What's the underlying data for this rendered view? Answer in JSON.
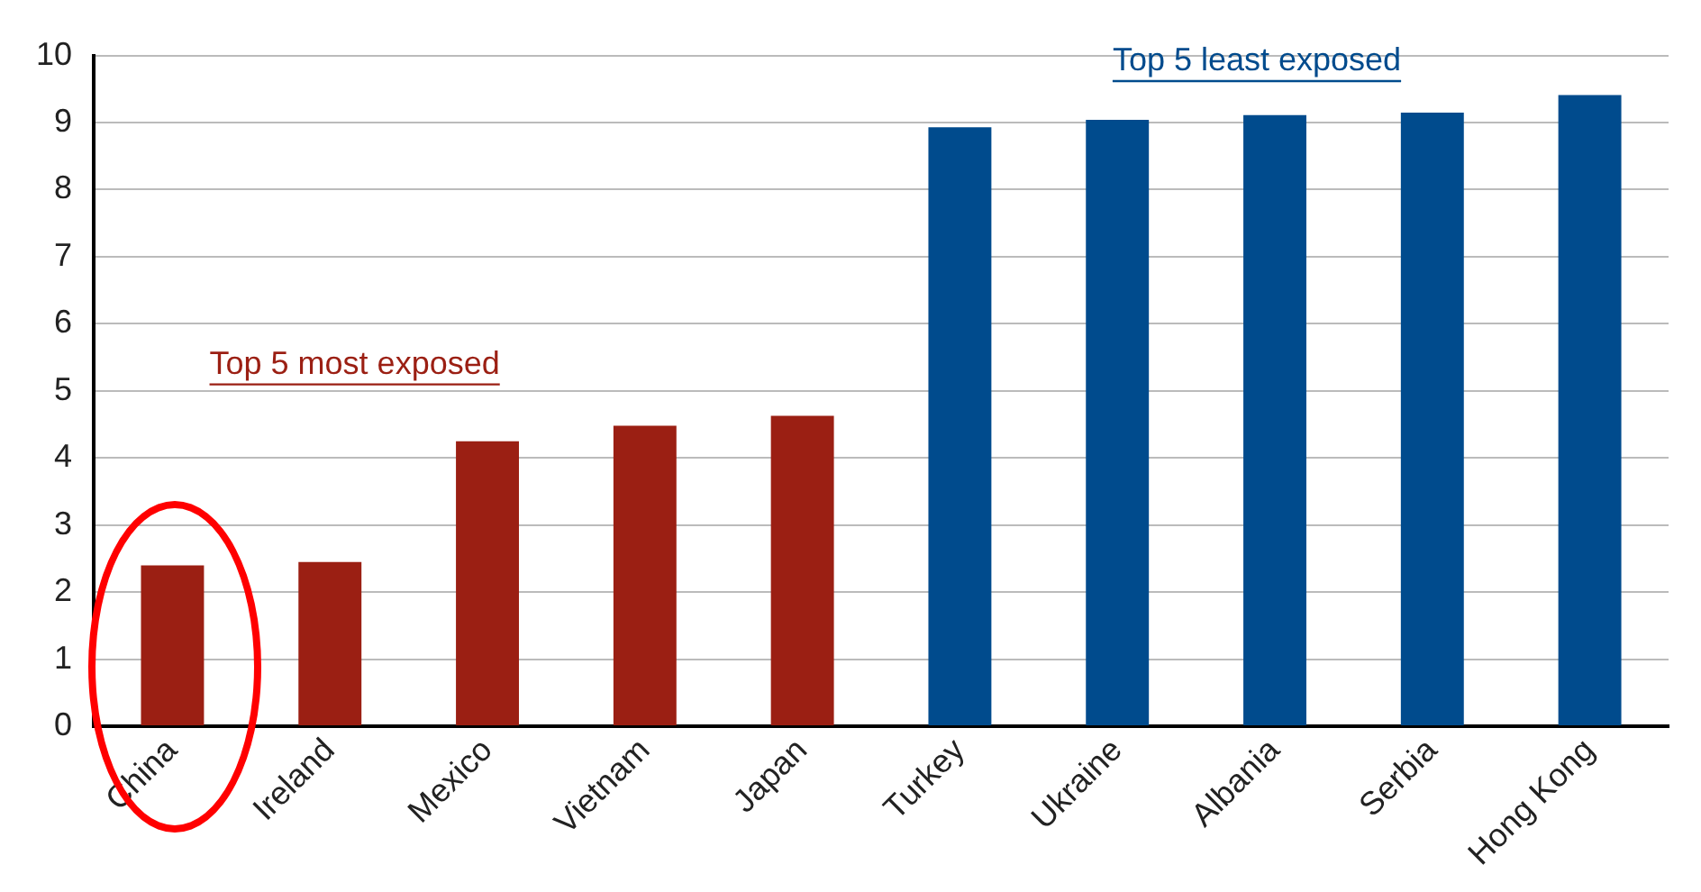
{
  "chart_data": {
    "type": "bar",
    "categories": [
      "China",
      "Ireland",
      "Mexico",
      "Vietnam",
      "Japan",
      "Turkey",
      "Ukraine",
      "Albania",
      "Serbia",
      "Hong Kong"
    ],
    "values": [
      2.4,
      2.45,
      4.25,
      4.48,
      4.63,
      8.93,
      9.04,
      9.11,
      9.15,
      9.41
    ],
    "colors": [
      "#9b1f13",
      "#9b1f13",
      "#9b1f13",
      "#9b1f13",
      "#9b1f13",
      "#004b8d",
      "#004b8d",
      "#004b8d",
      "#004b8d",
      "#004b8d"
    ],
    "ylim": [
      0,
      10
    ],
    "yticks": [
      0,
      1,
      2,
      3,
      4,
      5,
      6,
      7,
      8,
      9,
      10
    ],
    "grid": "y",
    "legend": false,
    "annotations": [
      "Top 5 most exposed",
      "Top 5 least exposed"
    ]
  }
}
